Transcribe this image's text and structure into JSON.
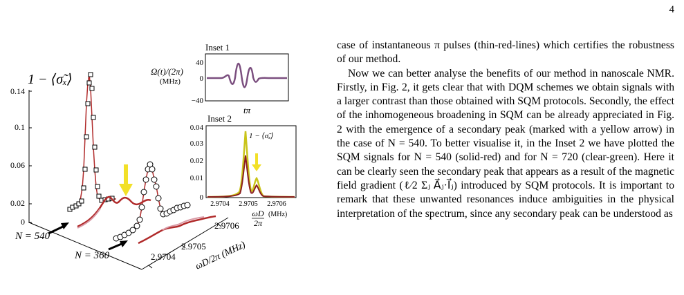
{
  "page_number": "4",
  "figure": {
    "main_ylabel": "1 − ⟨σ̃ₓ⟩",
    "main_yticks": [
      "0.14",
      "0.1",
      "0.06",
      "0.02",
      "0"
    ],
    "n_label_1": "N = 540",
    "n_label_2": "N = 360",
    "x_ticks": [
      "2.9706",
      "2.9705",
      "2.9704"
    ],
    "x_axis_label": "ωD/2π (MHz)",
    "inset1": {
      "title": "Inset 1",
      "ylabel": "Ω(t)/(2π)",
      "yunit": "(MHz)",
      "yticks": [
        "40",
        "0",
        "−40"
      ],
      "xlabel": "tπ"
    },
    "inset2": {
      "title": "Inset 2",
      "yticks": [
        "0.04",
        "0.03",
        "0.02",
        "0.01",
        "0"
      ],
      "xticks": [
        "2.9704",
        "2.9705",
        "2.9706"
      ],
      "curve_label": "1 − ⟨σ̃ₓ⟩",
      "xlabel_num": "ωD",
      "xlabel_den": "2π",
      "xlabel_unit": "(MHz)"
    },
    "colors": {
      "red": "#b02a2a",
      "dark_red": "#8b1f1f",
      "yellow_green": "#c9c41a",
      "arrow_yellow": "#f2e028",
      "purple": "#7b4f7f",
      "pink": "#d99aa6"
    }
  },
  "text": {
    "p1": "case of instantaneous π pulses (thin-red-lines) which certifies the robustness of our method.",
    "p2": "Now we can better analyse the benefits of our method in nanoscale NMR. Firstly, in Fig. 2, it gets clear that with DQM schemes we obtain signals with a larger contrast than those obtained with SQM protocols. Secondly, the effect of the inhomogeneous broadening in SQM can be already appreciated in Fig. 2 with the emergence of a secondary peak (marked with a yellow arrow) in the case of N = 540. To better visualise it, in the Inset 2 we have plotted the SQM signals for N = 540 (solid-red) and for N = 720 (clear-green). Here it can be clearly seen the secondary peak that appears as a result of the magnetic field gradient (ℓ⁄2 Σⱼ A⃗ⱼ·I⃗ⱼ) introduced by SQM protocols. It is important to remark that these unwanted resonances induce ambiguities in the physical interpretation of the spectrum, since any secondary peak can be understood as"
  }
}
